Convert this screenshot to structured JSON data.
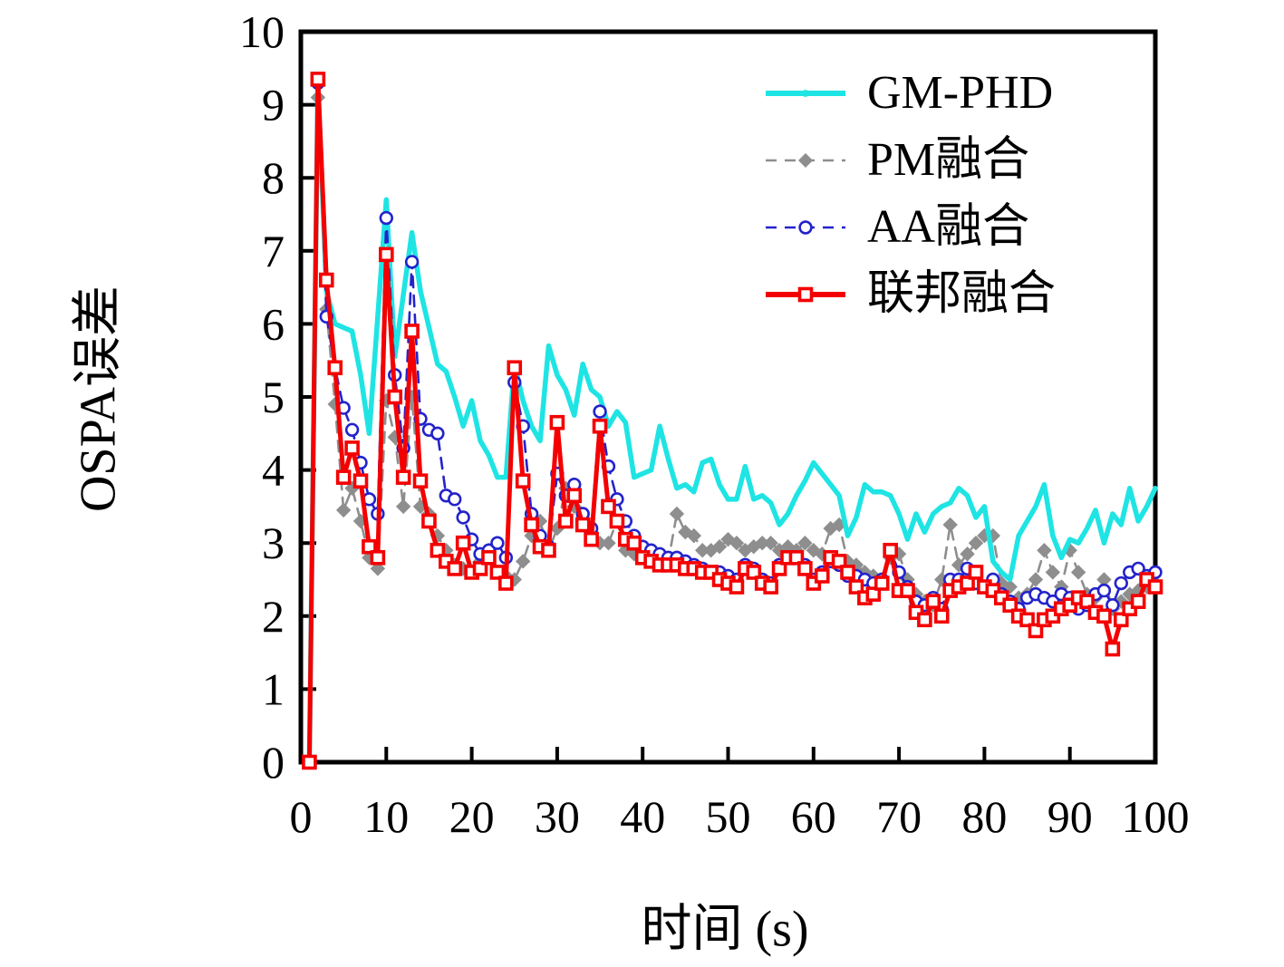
{
  "chart_data": {
    "type": "line",
    "title": "",
    "xlabel": "时间 (s)",
    "ylabel": "OSPA误差",
    "xlim": [
      0,
      100
    ],
    "ylim": [
      0,
      10
    ],
    "xticks": [
      0,
      10,
      20,
      30,
      40,
      50,
      60,
      70,
      80,
      90,
      100
    ],
    "yticks": [
      0,
      1,
      2,
      3,
      4,
      5,
      6,
      7,
      8,
      9,
      10
    ],
    "grid": false,
    "legend_position": "top-right-inside",
    "axis_color": "#000000",
    "background_color": "#ffffff",
    "x_start": 1,
    "x_step": 1,
    "draw_order": [
      1,
      0,
      2,
      3
    ],
    "series": [
      {
        "name": "GM-PHD",
        "color": "#1fe4e4",
        "line": "solid",
        "line_width": 5.5,
        "marker": "none",
        "values": [
          0,
          9.3,
          6.45,
          6.0,
          5.95,
          5.9,
          5.3,
          4.5,
          6.1,
          7.7,
          5.55,
          6.4,
          7.25,
          6.45,
          5.95,
          5.45,
          5.35,
          5.0,
          4.6,
          4.95,
          4.4,
          4.2,
          3.9,
          3.9,
          5.45,
          4.95,
          4.6,
          4.4,
          5.7,
          5.3,
          5.1,
          4.75,
          5.45,
          5.1,
          5.0,
          4.6,
          4.8,
          4.65,
          3.9,
          3.95,
          4.0,
          4.6,
          4.15,
          3.75,
          3.8,
          3.7,
          4.1,
          4.15,
          3.8,
          3.6,
          3.6,
          4.05,
          3.6,
          3.65,
          3.55,
          3.25,
          3.4,
          3.65,
          3.85,
          4.1,
          3.95,
          3.8,
          3.65,
          3.1,
          3.35,
          3.8,
          3.7,
          3.7,
          3.65,
          3.4,
          3.05,
          3.4,
          3.15,
          3.4,
          3.5,
          3.55,
          3.75,
          3.65,
          3.35,
          3.5,
          2.75,
          2.6,
          2.5,
          3.1,
          3.3,
          3.5,
          3.8,
          3.1,
          2.8,
          3.05,
          3.0,
          3.2,
          3.45,
          3.0,
          3.4,
          3.25,
          3.75,
          3.3,
          3.5,
          3.75
        ]
      },
      {
        "name": "PM融合",
        "color": "#8e8e8e",
        "line": "dashed",
        "line_width": 2.6,
        "marker": "diamond",
        "values": [
          0,
          9.1,
          6.2,
          4.9,
          3.45,
          3.75,
          3.3,
          2.8,
          2.65,
          4.95,
          4.45,
          3.5,
          5.0,
          3.5,
          3.4,
          3.1,
          2.9,
          2.7,
          2.65,
          2.6,
          2.75,
          2.9,
          2.6,
          2.55,
          2.5,
          2.75,
          3.1,
          3.3,
          2.9,
          3.2,
          3.75,
          3.5,
          3.3,
          3.15,
          3.0,
          3.0,
          3.3,
          2.9,
          2.85,
          2.8,
          2.75,
          2.7,
          2.75,
          3.4,
          3.15,
          3.1,
          2.9,
          2.9,
          2.95,
          3.05,
          3.0,
          2.9,
          2.95,
          3.0,
          3.0,
          2.9,
          2.95,
          2.9,
          3.0,
          2.9,
          2.85,
          3.2,
          3.25,
          2.75,
          2.7,
          2.6,
          2.55,
          2.5,
          2.8,
          2.85,
          2.5,
          2.3,
          2.2,
          2.15,
          2.5,
          3.25,
          2.7,
          2.85,
          3.0,
          3.1,
          3.1,
          2.45,
          2.4,
          2.25,
          2.3,
          2.5,
          2.9,
          2.6,
          2.4,
          2.9,
          2.6,
          2.3,
          2.25,
          2.5,
          2.1,
          2.2,
          2.3,
          2.35,
          2.4,
          2.45
        ]
      },
      {
        "name": "AA融合",
        "color": "#2323cb",
        "line": "dashed",
        "line_width": 2.6,
        "marker": "circle",
        "values": [
          0,
          9.3,
          6.1,
          5.4,
          4.85,
          4.55,
          4.1,
          3.6,
          3.4,
          7.45,
          5.3,
          4.3,
          6.85,
          4.7,
          4.55,
          4.5,
          3.65,
          3.6,
          3.35,
          3.05,
          2.85,
          2.9,
          3.0,
          2.8,
          5.2,
          4.6,
          3.4,
          3.1,
          2.95,
          3.95,
          3.65,
          3.8,
          3.4,
          3.2,
          4.8,
          4.05,
          3.6,
          3.3,
          3.1,
          2.95,
          2.9,
          2.85,
          2.8,
          2.8,
          2.75,
          2.7,
          2.65,
          2.6,
          2.6,
          2.55,
          2.5,
          2.7,
          2.65,
          2.5,
          2.45,
          2.7,
          2.8,
          2.8,
          2.7,
          2.5,
          2.6,
          2.75,
          2.7,
          2.55,
          2.55,
          2.5,
          2.45,
          2.5,
          2.9,
          2.6,
          2.4,
          2.2,
          2.15,
          2.25,
          2.1,
          2.5,
          2.5,
          2.65,
          2.45,
          2.4,
          2.5,
          2.3,
          2.2,
          2.1,
          2.25,
          2.3,
          2.25,
          2.2,
          2.3,
          2.25,
          2.1,
          2.15,
          2.3,
          2.35,
          2.15,
          2.45,
          2.6,
          2.65,
          2.55,
          2.6
        ]
      },
      {
        "name": "联邦融合",
        "color": "#f40000",
        "line": "solid",
        "line_width": 5,
        "marker": "square",
        "values": [
          0,
          9.35,
          6.6,
          5.4,
          3.9,
          4.3,
          3.85,
          2.95,
          2.8,
          6.95,
          5.0,
          3.9,
          5.9,
          3.85,
          3.3,
          2.9,
          2.75,
          2.65,
          3.0,
          2.6,
          2.65,
          2.8,
          2.6,
          2.45,
          5.4,
          3.85,
          3.25,
          2.95,
          2.9,
          4.65,
          3.3,
          3.65,
          3.25,
          3.05,
          4.6,
          3.5,
          3.3,
          3.05,
          3.0,
          2.8,
          2.75,
          2.7,
          2.7,
          2.7,
          2.65,
          2.65,
          2.6,
          2.6,
          2.5,
          2.45,
          2.4,
          2.65,
          2.6,
          2.45,
          2.4,
          2.65,
          2.8,
          2.8,
          2.65,
          2.45,
          2.55,
          2.8,
          2.75,
          2.6,
          2.4,
          2.25,
          2.3,
          2.45,
          2.9,
          2.35,
          2.35,
          2.05,
          1.95,
          2.2,
          2.0,
          2.35,
          2.4,
          2.45,
          2.6,
          2.4,
          2.35,
          2.25,
          2.15,
          2.0,
          1.95,
          1.8,
          1.95,
          2.0,
          2.1,
          2.15,
          2.25,
          2.2,
          2.05,
          2.0,
          1.55,
          1.95,
          2.1,
          2.2,
          2.5,
          2.4
        ]
      }
    ]
  }
}
